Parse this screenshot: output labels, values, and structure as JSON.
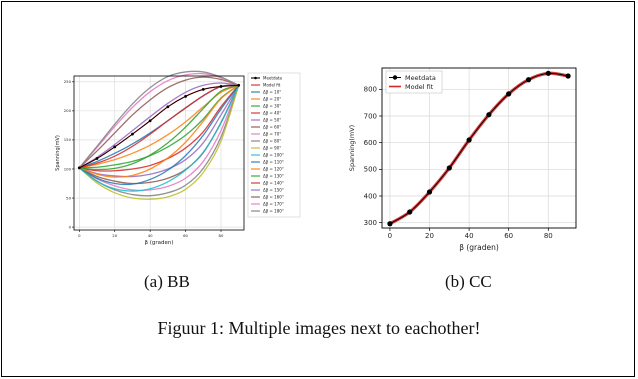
{
  "figure": {
    "caption": "Figuur 1: Multiple images next to eachother!",
    "subcaptions": [
      "(a) BB",
      "(b) CC"
    ]
  },
  "chart_data": [
    {
      "type": "line",
      "title": "",
      "xlabel": "β (graden)",
      "ylabel": "Spanning(mV)",
      "xlim": [
        -3,
        93
      ],
      "ylim": [
        -5,
        260
      ],
      "xticks": [
        0,
        20,
        40,
        60,
        80
      ],
      "yticks": [
        0,
        50,
        100,
        150,
        200,
        250
      ],
      "grid": true,
      "legend": "right-outside",
      "meetdata": {
        "name": "Meetdata",
        "x": [
          0,
          10,
          20,
          30,
          40,
          50,
          60,
          70,
          80,
          90
        ],
        "y": [
          102,
          118,
          138,
          160,
          183,
          207,
          225,
          237,
          242,
          244
        ]
      },
      "model_fit": {
        "name": "Model fit",
        "x": [
          0,
          10,
          20,
          30,
          40,
          50,
          60,
          70,
          80,
          90
        ],
        "y": [
          102,
          118,
          138,
          160,
          183,
          207,
          225,
          237,
          242,
          244
        ]
      },
      "delta_series": [
        {
          "name": "Δβ = 10°",
          "values": [
            102,
            113,
            127,
            143,
            162,
            183,
            205,
            226,
            242,
            244
          ]
        },
        {
          "name": "Δβ = 20°",
          "values": [
            102,
            108,
            116,
            127,
            141,
            159,
            181,
            207,
            232,
            244
          ]
        },
        {
          "name": "Δβ = 30°",
          "values": [
            102,
            103,
            107,
            113,
            123,
            138,
            158,
            186,
            222,
            244
          ]
        },
        {
          "name": "Δβ = 40°",
          "values": [
            102,
            97,
            97,
            100,
            106,
            118,
            136,
            164,
            207,
            244
          ]
        },
        {
          "name": "Δβ = 50°",
          "values": [
            102,
            92,
            88,
            87,
            91,
            100,
            116,
            145,
            193,
            244
          ]
        },
        {
          "name": "Δβ = 60°",
          "values": [
            102,
            87,
            79,
            75,
            77,
            84,
            99,
            128,
            180,
            244
          ]
        },
        {
          "name": "Δβ = 70°",
          "values": [
            102,
            83,
            71,
            64,
            64,
            70,
            84,
            113,
            166,
            244
          ]
        },
        {
          "name": "Δβ = 80°",
          "values": [
            102,
            79,
            64,
            56,
            54,
            59,
            72,
            101,
            155,
            244
          ]
        },
        {
          "name": "Δβ = 90°",
          "values": [
            102,
            76,
            59,
            50,
            48,
            52,
            65,
            94,
            148,
            244
          ]
        },
        {
          "name": "Δβ = 100°",
          "values": [
            102,
            79,
            66,
            62,
            66,
            78,
            98,
            129,
            179,
            244
          ]
        },
        {
          "name": "Δβ = 110°",
          "values": [
            102,
            84,
            75,
            74,
            82,
            98,
            123,
            158,
            203,
            244
          ]
        },
        {
          "name": "Δβ = 120°",
          "values": [
            102,
            91,
            86,
            89,
            100,
            119,
            146,
            182,
            221,
            244
          ]
        },
        {
          "name": "Δβ = 130°",
          "values": [
            102,
            99,
            101,
            109,
            124,
            145,
            172,
            204,
            234,
            244
          ]
        },
        {
          "name": "Δβ = 140°",
          "values": [
            102,
            110,
            122,
            139,
            160,
            183,
            205,
            226,
            242,
            244
          ]
        },
        {
          "name": "Δβ = 150°",
          "values": [
            102,
            120,
            142,
            166,
            190,
            213,
            232,
            244,
            248,
            244
          ]
        },
        {
          "name": "Δβ = 160°",
          "values": [
            102,
            131,
            162,
            193,
            219,
            240,
            253,
            258,
            254,
            244
          ]
        },
        {
          "name": "Δβ = 170°",
          "values": [
            102,
            137,
            173,
            206,
            233,
            252,
            262,
            264,
            257,
            244
          ]
        },
        {
          "name": "Δβ = 180°",
          "values": [
            102,
            139,
            177,
            212,
            240,
            259,
            267,
            267,
            258,
            244
          ]
        }
      ],
      "colors": [
        "#1f77b4",
        "#ff7f0e",
        "#2ca02c",
        "#d62728",
        "#9467bd",
        "#8c564b",
        "#e377c2",
        "#7f7f7f",
        "#bcbd22",
        "#17becf",
        "#1f77b4",
        "#ff7f0e",
        "#2ca02c",
        "#d62728",
        "#9467bd",
        "#8c564b",
        "#e377c2",
        "#7f7f7f"
      ]
    },
    {
      "type": "line",
      "title": "",
      "xlabel": "β (graden)",
      "ylabel": "Spanning(mV)",
      "xlim": [
        -4,
        94
      ],
      "ylim": [
        280,
        880
      ],
      "xticks": [
        0,
        20,
        40,
        60,
        80
      ],
      "yticks": [
        300,
        400,
        500,
        600,
        700,
        800
      ],
      "grid": true,
      "legend": "top-left",
      "series": [
        {
          "name": "Meetdata",
          "x": [
            0,
            10,
            20,
            30,
            40,
            50,
            60,
            70,
            80,
            90
          ],
          "y": [
            296,
            340,
            415,
            505,
            610,
            705,
            783,
            836,
            860,
            850
          ]
        },
        {
          "name": "Model fit",
          "x": [
            0,
            10,
            20,
            30,
            40,
            50,
            60,
            70,
            80,
            90
          ],
          "y": [
            296,
            340,
            415,
            505,
            610,
            705,
            783,
            836,
            860,
            850
          ]
        }
      ],
      "colors": {
        "meetdata": "#000000",
        "model_fit": "#d62728"
      }
    }
  ]
}
